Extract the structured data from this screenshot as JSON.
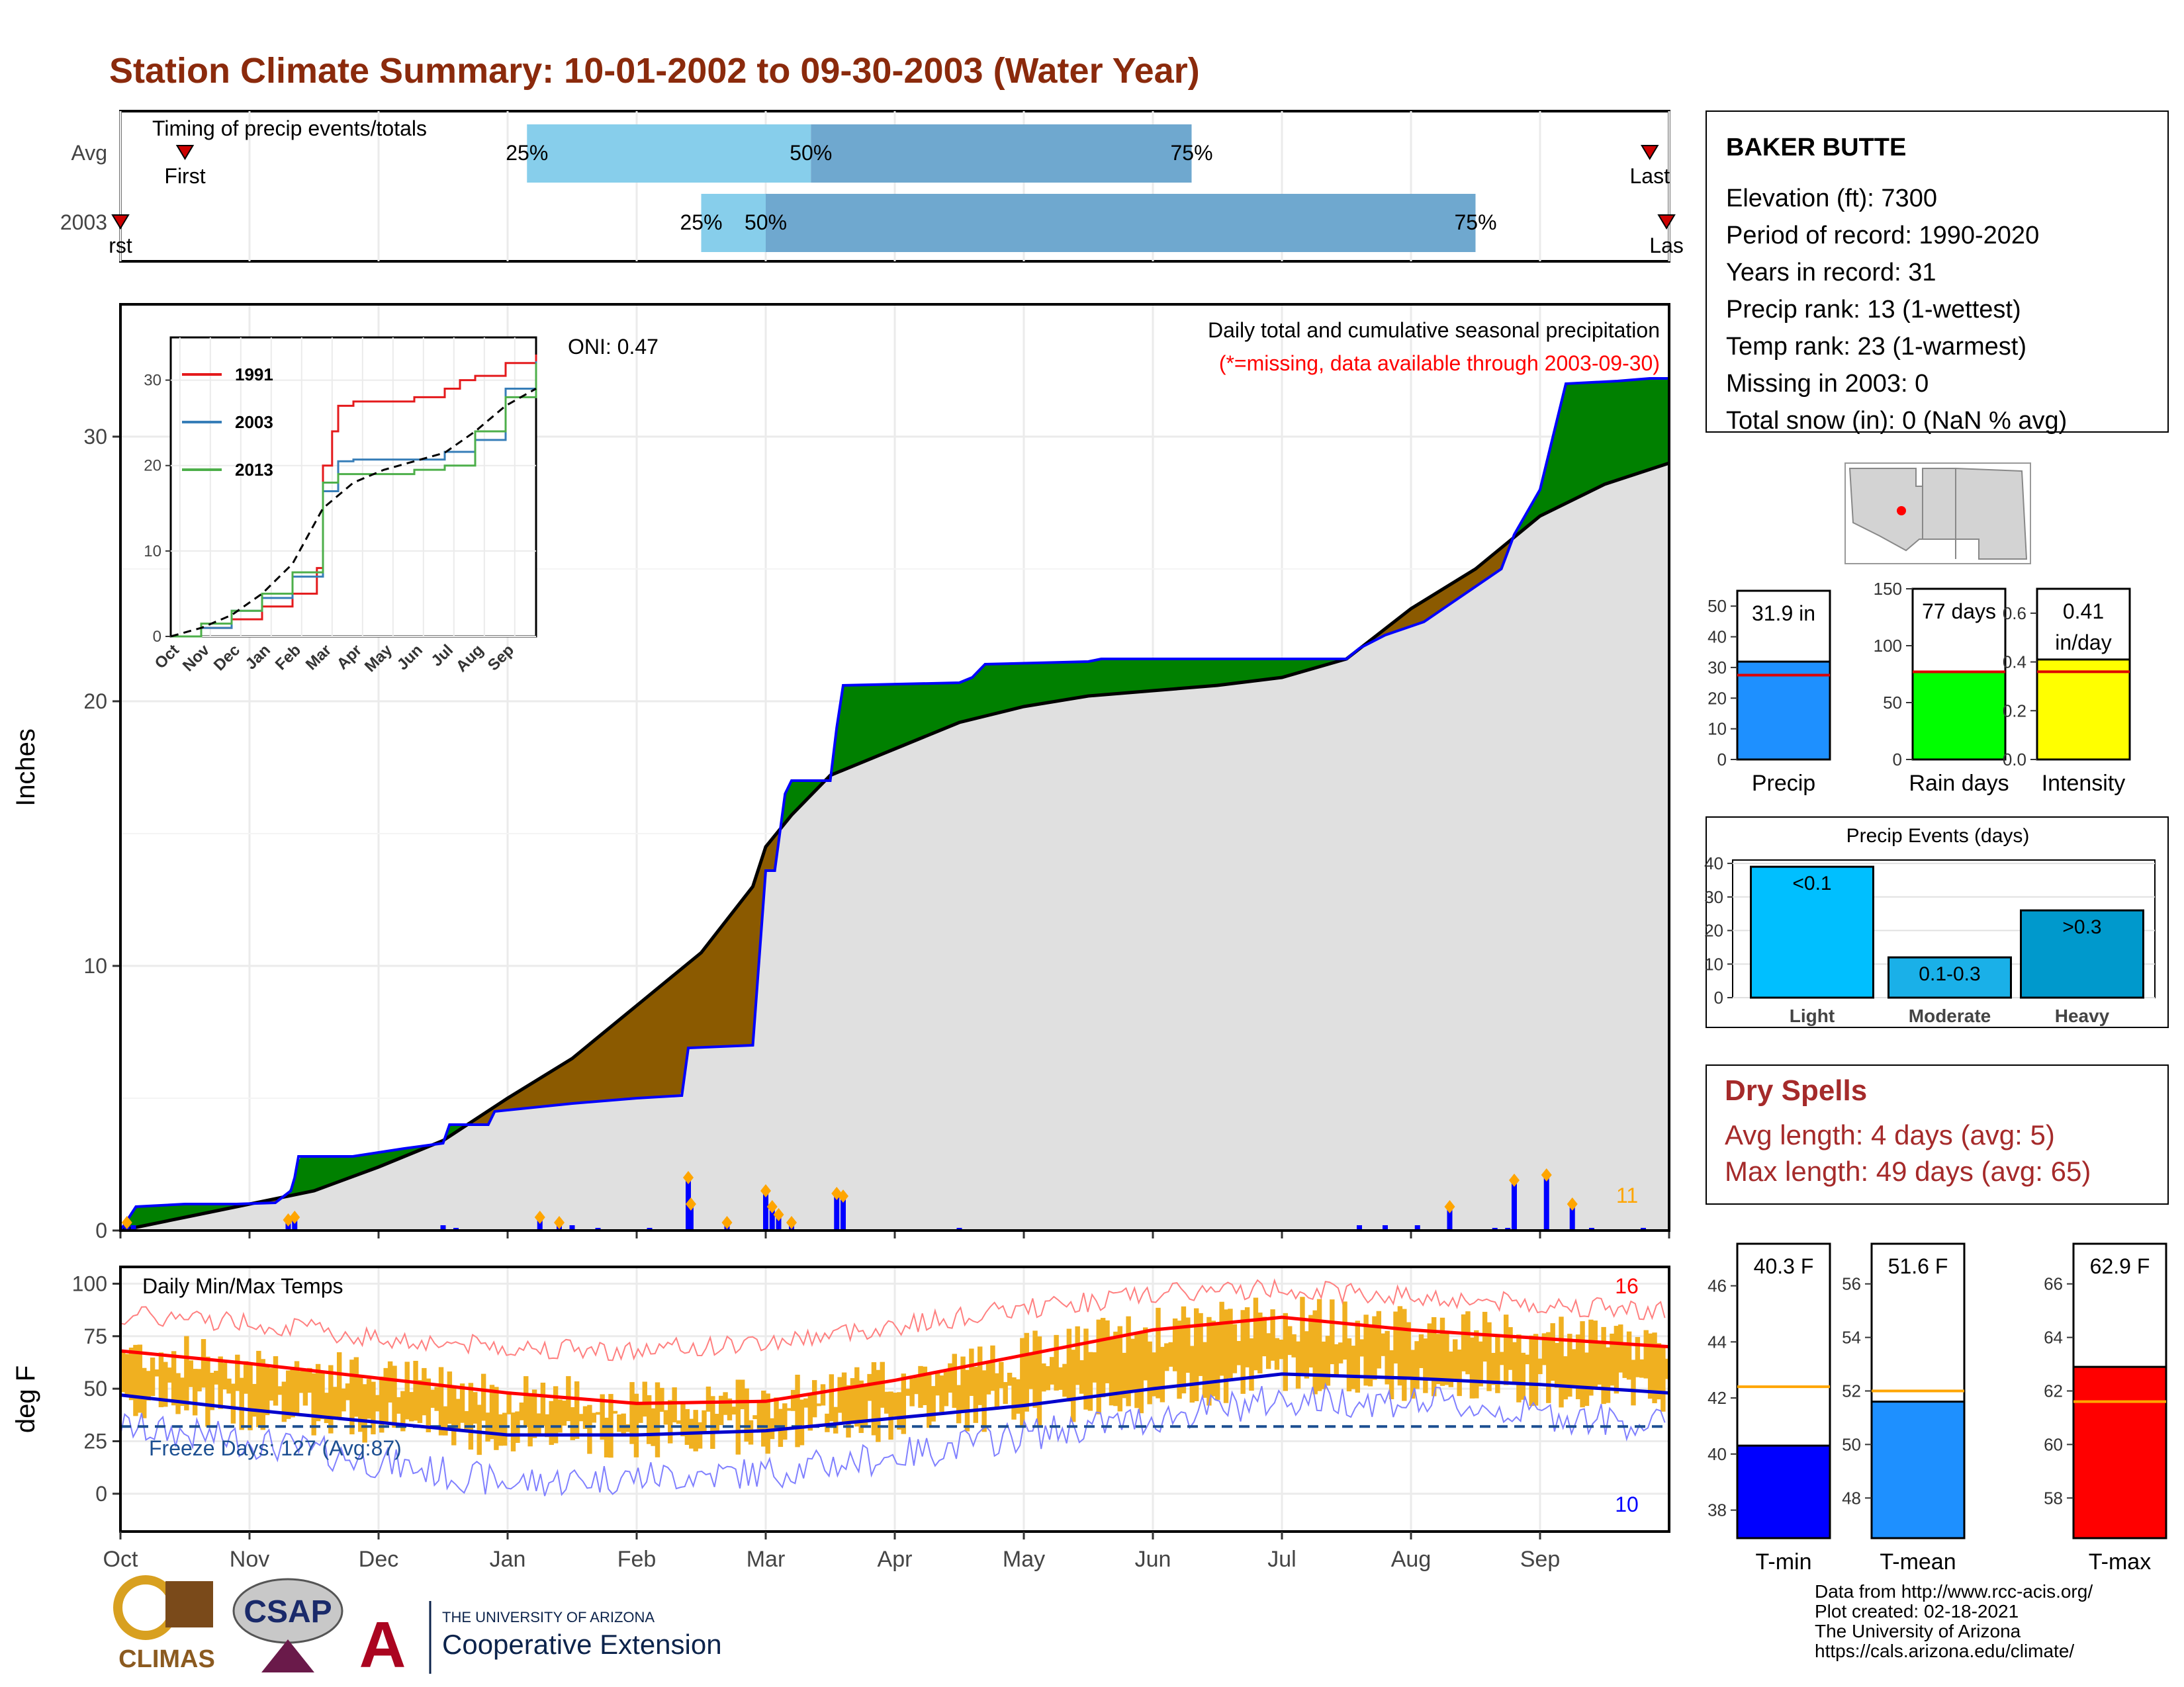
{
  "title": "Station Climate Summary: 10-01-2002 to 09-30-2003 (Water Year)",
  "colors": {
    "title": "#8b2a0c",
    "precip_obs": "#0000ff",
    "avg_fill": "#e0e0e0",
    "above_avg": "#008000",
    "below_avg": "#8b5a00",
    "bar_light": "#87ceeb",
    "bar_dark": "#6fa8cf",
    "temp_band": "#f0b020",
    "avg_max": "#ff0000",
    "avg_min": "#0000cc",
    "dry_spells": "#a52a2a"
  },
  "timing": {
    "title": "Timing of precip events/totals",
    "rows": [
      {
        "label": "Avg",
        "first_label": "First",
        "last_label": "Last",
        "first_month": 0.5,
        "last_month": 11.85,
        "p25": 3.15,
        "p50": 5.35,
        "p75": 8.3,
        "p25_label": "25%",
        "p50_label": "50%",
        "p75_label": "75%"
      },
      {
        "label": "2003",
        "first_label": "rst",
        "last_label": "Las",
        "first_month": 0.0,
        "last_month": 11.98,
        "p25": 4.5,
        "p50": 5.0,
        "p75": 10.5,
        "p25_label": "25%",
        "p50_label": "50%",
        "p75_label": "75%"
      }
    ]
  },
  "precip_panel": {
    "ylabel": "Inches",
    "yticks": [
      "0",
      "10",
      "20",
      "30"
    ],
    "ymax": 35,
    "oni_label": "ONI: 0.47",
    "subtitle": "Daily total and cumulative seasonal precipitation",
    "missing_note": "(*=missing, data available through 2003-09-30)",
    "corner_count": "11",
    "cumulative_2003": [
      [
        0,
        0
      ],
      [
        0.08,
        0.6
      ],
      [
        0.12,
        0.9
      ],
      [
        0.5,
        1.0
      ],
      [
        0.9,
        1.0
      ],
      [
        1.2,
        1.05
      ],
      [
        1.32,
        1.5
      ],
      [
        1.35,
        2.0
      ],
      [
        1.38,
        2.8
      ],
      [
        1.8,
        2.8
      ],
      [
        2.2,
        3.1
      ],
      [
        2.5,
        3.3
      ],
      [
        2.55,
        4.0
      ],
      [
        2.85,
        4.0
      ],
      [
        2.9,
        4.5
      ],
      [
        3.5,
        4.8
      ],
      [
        4.0,
        5.0
      ],
      [
        4.35,
        5.1
      ],
      [
        4.4,
        6.9
      ],
      [
        4.9,
        7.0
      ],
      [
        5.0,
        13.6
      ],
      [
        5.07,
        13.6
      ],
      [
        5.15,
        16.5
      ],
      [
        5.2,
        17.0
      ],
      [
        5.5,
        17.0
      ],
      [
        5.55,
        19.0
      ],
      [
        5.6,
        20.6
      ],
      [
        6.5,
        20.7
      ],
      [
        6.6,
        20.9
      ],
      [
        6.7,
        21.4
      ],
      [
        7.5,
        21.5
      ],
      [
        7.6,
        21.6
      ],
      [
        9.5,
        21.6
      ],
      [
        9.6,
        22.0
      ],
      [
        9.8,
        22.5
      ],
      [
        10.1,
        23.0
      ],
      [
        10.4,
        24.0
      ],
      [
        10.7,
        25.0
      ],
      [
        10.8,
        26.3
      ],
      [
        11.0,
        28.0
      ],
      [
        11.05,
        29.0
      ],
      [
        11.2,
        32.0
      ],
      [
        11.6,
        32.1
      ],
      [
        11.85,
        32.2
      ],
      [
        12,
        32.2
      ]
    ],
    "cumulative_avg": [
      [
        0,
        0
      ],
      [
        0.5,
        0.5
      ],
      [
        1.0,
        1.0
      ],
      [
        1.5,
        1.5
      ],
      [
        2.0,
        2.4
      ],
      [
        2.5,
        3.4
      ],
      [
        3.0,
        5.0
      ],
      [
        3.5,
        6.5
      ],
      [
        4.0,
        8.5
      ],
      [
        4.5,
        10.5
      ],
      [
        4.9,
        13.0
      ],
      [
        5.0,
        14.5
      ],
      [
        5.2,
        15.7
      ],
      [
        5.5,
        17.2
      ],
      [
        6.0,
        18.2
      ],
      [
        6.5,
        19.2
      ],
      [
        7.0,
        19.8
      ],
      [
        7.5,
        20.2
      ],
      [
        8.0,
        20.4
      ],
      [
        8.5,
        20.6
      ],
      [
        9.0,
        20.9
      ],
      [
        9.5,
        21.6
      ],
      [
        10.0,
        23.5
      ],
      [
        10.5,
        25.0
      ],
      [
        11.0,
        27.0
      ],
      [
        11.5,
        28.2
      ],
      [
        12,
        29.0
      ]
    ],
    "daily_bars": [
      [
        0.05,
        0.3
      ],
      [
        0.1,
        0.2
      ],
      [
        1.3,
        0.4
      ],
      [
        1.35,
        0.5
      ],
      [
        2.5,
        0.2
      ],
      [
        2.6,
        0.1
      ],
      [
        3.25,
        0.5
      ],
      [
        3.4,
        0.3
      ],
      [
        3.5,
        0.2
      ],
      [
        3.7,
        0.1
      ],
      [
        4.1,
        0.1
      ],
      [
        4.4,
        2.0
      ],
      [
        4.42,
        1.0
      ],
      [
        4.7,
        0.3
      ],
      [
        5.0,
        1.5
      ],
      [
        5.05,
        0.9
      ],
      [
        5.1,
        0.6
      ],
      [
        5.2,
        0.3
      ],
      [
        5.55,
        1.4
      ],
      [
        5.6,
        1.3
      ],
      [
        6.5,
        0.1
      ],
      [
        9.6,
        0.2
      ],
      [
        9.8,
        0.2
      ],
      [
        10.05,
        0.2
      ],
      [
        10.3,
        0.9
      ],
      [
        10.65,
        0.1
      ],
      [
        10.75,
        0.1
      ],
      [
        10.8,
        1.9
      ],
      [
        11.05,
        2.1
      ],
      [
        11.25,
        1.0
      ],
      [
        11.4,
        0.1
      ],
      [
        11.8,
        0.1
      ]
    ]
  },
  "inset": {
    "yticks": [
      "0",
      "10",
      "20",
      "30"
    ],
    "xticks": [
      "Oct",
      "Nov",
      "Dec",
      "Jan",
      "Feb",
      "Mar",
      "Apr",
      "May",
      "Jun",
      "Jul",
      "Aug",
      "Sep"
    ],
    "legend": [
      "1991",
      "2003",
      "2013"
    ],
    "series_colors": [
      "#e41a1c",
      "#377eb8",
      "#4daf4a"
    ],
    "s1991": [
      [
        0,
        0
      ],
      [
        1,
        1
      ],
      [
        2,
        2
      ],
      [
        3,
        3.5
      ],
      [
        4,
        5
      ],
      [
        4.8,
        8
      ],
      [
        5,
        20
      ],
      [
        5.3,
        24
      ],
      [
        5.5,
        27
      ],
      [
        6,
        27.5
      ],
      [
        8,
        28
      ],
      [
        9,
        29
      ],
      [
        9.5,
        30
      ],
      [
        10,
        30.5
      ],
      [
        11,
        32
      ],
      [
        12,
        33
      ]
    ],
    "s2003": [
      [
        0,
        0
      ],
      [
        1,
        1
      ],
      [
        2,
        3
      ],
      [
        3,
        4.5
      ],
      [
        4,
        7
      ],
      [
        5,
        17
      ],
      [
        5.5,
        20.5
      ],
      [
        6,
        20.7
      ],
      [
        9,
        21.6
      ],
      [
        10,
        23
      ],
      [
        11,
        29
      ],
      [
        12,
        32.2
      ]
    ],
    "s2013": [
      [
        0,
        0
      ],
      [
        1,
        1.5
      ],
      [
        2,
        3
      ],
      [
        3,
        5
      ],
      [
        4,
        7.5
      ],
      [
        5,
        18
      ],
      [
        5.5,
        19
      ],
      [
        8,
        19.5
      ],
      [
        9,
        20
      ],
      [
        10,
        24
      ],
      [
        11,
        28
      ],
      [
        12,
        32
      ]
    ],
    "savg": [
      [
        0,
        0
      ],
      [
        1,
        1
      ],
      [
        2,
        2.5
      ],
      [
        3,
        5
      ],
      [
        4,
        8.5
      ],
      [
        5,
        15
      ],
      [
        6,
        18
      ],
      [
        7,
        19.5
      ],
      [
        8,
        20.5
      ],
      [
        9,
        21.5
      ],
      [
        10,
        24
      ],
      [
        11,
        27
      ],
      [
        12,
        29
      ]
    ]
  },
  "temp_panel": {
    "title": "Daily Min/Max Temps",
    "ylabel": "deg F",
    "yticks": [
      "0",
      "25",
      "50",
      "75",
      "100"
    ],
    "freeze_label": "Freeze Days: 127 (Avg:87)",
    "count_max": "16",
    "count_min": "10",
    "avg_max_pts": [
      [
        0,
        68
      ],
      [
        1,
        62
      ],
      [
        2,
        55
      ],
      [
        3,
        48
      ],
      [
        4,
        43
      ],
      [
        5,
        44
      ],
      [
        6,
        54
      ],
      [
        7,
        66
      ],
      [
        8,
        78
      ],
      [
        9,
        84
      ],
      [
        10,
        78
      ],
      [
        11,
        74
      ],
      [
        12,
        70
      ]
    ],
    "avg_min_pts": [
      [
        0,
        47
      ],
      [
        1,
        40
      ],
      [
        2,
        34
      ],
      [
        3,
        28
      ],
      [
        4,
        28
      ],
      [
        5,
        30
      ],
      [
        6,
        36
      ],
      [
        7,
        42
      ],
      [
        8,
        50
      ],
      [
        9,
        57
      ],
      [
        10,
        55
      ],
      [
        11,
        52
      ],
      [
        12,
        48
      ]
    ],
    "rec_max_pts": [
      [
        0,
        85
      ],
      [
        1,
        82
      ],
      [
        2,
        74
      ],
      [
        3,
        70
      ],
      [
        4,
        68
      ],
      [
        5,
        72
      ],
      [
        6,
        80
      ],
      [
        7,
        88
      ],
      [
        8,
        95
      ],
      [
        9,
        98
      ],
      [
        10,
        94
      ],
      [
        11,
        90
      ],
      [
        12,
        87
      ]
    ],
    "rec_min_pts": [
      [
        0,
        32
      ],
      [
        1,
        25
      ],
      [
        2,
        15
      ],
      [
        3,
        5
      ],
      [
        4,
        8
      ],
      [
        5,
        10
      ],
      [
        6,
        18
      ],
      [
        7,
        28
      ],
      [
        8,
        36
      ],
      [
        9,
        45
      ],
      [
        10,
        44
      ],
      [
        11,
        38
      ],
      [
        12,
        32
      ]
    ]
  },
  "months": [
    "Oct",
    "Nov",
    "Dec",
    "Jan",
    "Feb",
    "Mar",
    "Apr",
    "May",
    "Jun",
    "Jul",
    "Aug",
    "Sep"
  ],
  "station": {
    "name": "BAKER BUTTE",
    "lines": [
      "Elevation (ft): 7300",
      "Period of record: 1990-2020",
      "Years in record: 31",
      "Precip rank: 13 (1-wettest)",
      "Temp rank: 23 (1-warmest)",
      "Missing in 2003: 0",
      "Total snow (in): 0 (NaN % avg)"
    ]
  },
  "summary_bars": [
    {
      "label": "Precip",
      "value_label": "31.9 in",
      "value": 31.9,
      "avg": 27.5,
      "ymax": 55,
      "ticks": [
        "0",
        "10",
        "20",
        "30",
        "40",
        "50"
      ],
      "tickvals": [
        0,
        10,
        20,
        30,
        40,
        50
      ],
      "color": "#1e90ff"
    },
    {
      "label": "Rain days",
      "value_label": "77 days",
      "value": 77,
      "avg": 77,
      "ymax": 150,
      "ticks": [
        "0",
        "50",
        "100",
        "150"
      ],
      "tickvals": [
        0,
        50,
        100,
        150
      ],
      "color": "#00ff00"
    },
    {
      "label": "Intensity",
      "value_label": "0.41 in/day",
      "value_line1": "0.41",
      "value_line2": "in/day",
      "value": 0.41,
      "avg": 0.36,
      "ymax": 0.7,
      "ticks": [
        "0.0",
        "0.2",
        "0.4",
        "0.6"
      ],
      "tickvals": [
        0,
        0.2,
        0.4,
        0.6
      ],
      "color": "#ffff00"
    }
  ],
  "events": {
    "title": "Precip Events (days)",
    "ticks": [
      "0",
      "10",
      "20",
      "30",
      "40"
    ],
    "bars": [
      {
        "label": "Light",
        "bar_text": "<0.1",
        "value": 39,
        "color": "#00bfff"
      },
      {
        "label": "Moderate",
        "bar_text": "0.1-0.3",
        "value": 12,
        "color": "#1ab0e8"
      },
      {
        "label": "Heavy",
        "bar_text": ">0.3",
        "value": 26,
        "color": "#0099cc"
      }
    ]
  },
  "dry_spells": {
    "title": "Dry Spells",
    "avg_line": "Avg length: 4 days (avg: 5)",
    "max_line": "Max length: 49 days (avg: 65)"
  },
  "temp_bars": [
    {
      "label": "T-min",
      "value_label": "40.3 F",
      "value": 40.3,
      "avg": 42.4,
      "ymin": 37,
      "ymax": 47.5,
      "ticks": [
        "38",
        "40",
        "42",
        "44",
        "46"
      ],
      "tickvals": [
        38,
        40,
        42,
        44,
        46
      ],
      "color": "#0000ff"
    },
    {
      "label": "T-mean",
      "value_label": "51.6 F",
      "value": 51.6,
      "avg": 52.0,
      "ymin": 46.5,
      "ymax": 57.5,
      "ticks": [
        "48",
        "50",
        "52",
        "54",
        "56"
      ],
      "tickvals": [
        48,
        50,
        52,
        54,
        56
      ],
      "color": "#1e90ff"
    },
    {
      "label": "T-max",
      "value_label": "62.9 F",
      "value": 62.9,
      "avg": 61.6,
      "ymin": 56.5,
      "ymax": 67.5,
      "ticks": [
        "58",
        "60",
        "62",
        "64",
        "66"
      ],
      "tickvals": [
        58,
        60,
        62,
        64,
        66
      ],
      "color": "#ff0000"
    }
  ],
  "footer": {
    "lines": [
      "Data from http://www.rcc-acis.org/",
      "Plot created: 02-18-2021",
      "The University of Arizona",
      "https://cals.arizona.edu/climate/"
    ],
    "climas": "CLIMAS",
    "csap": "CSAP",
    "ua_small": "THE UNIVERSITY OF ARIZONA",
    "ua_big": "Cooperative Extension"
  }
}
